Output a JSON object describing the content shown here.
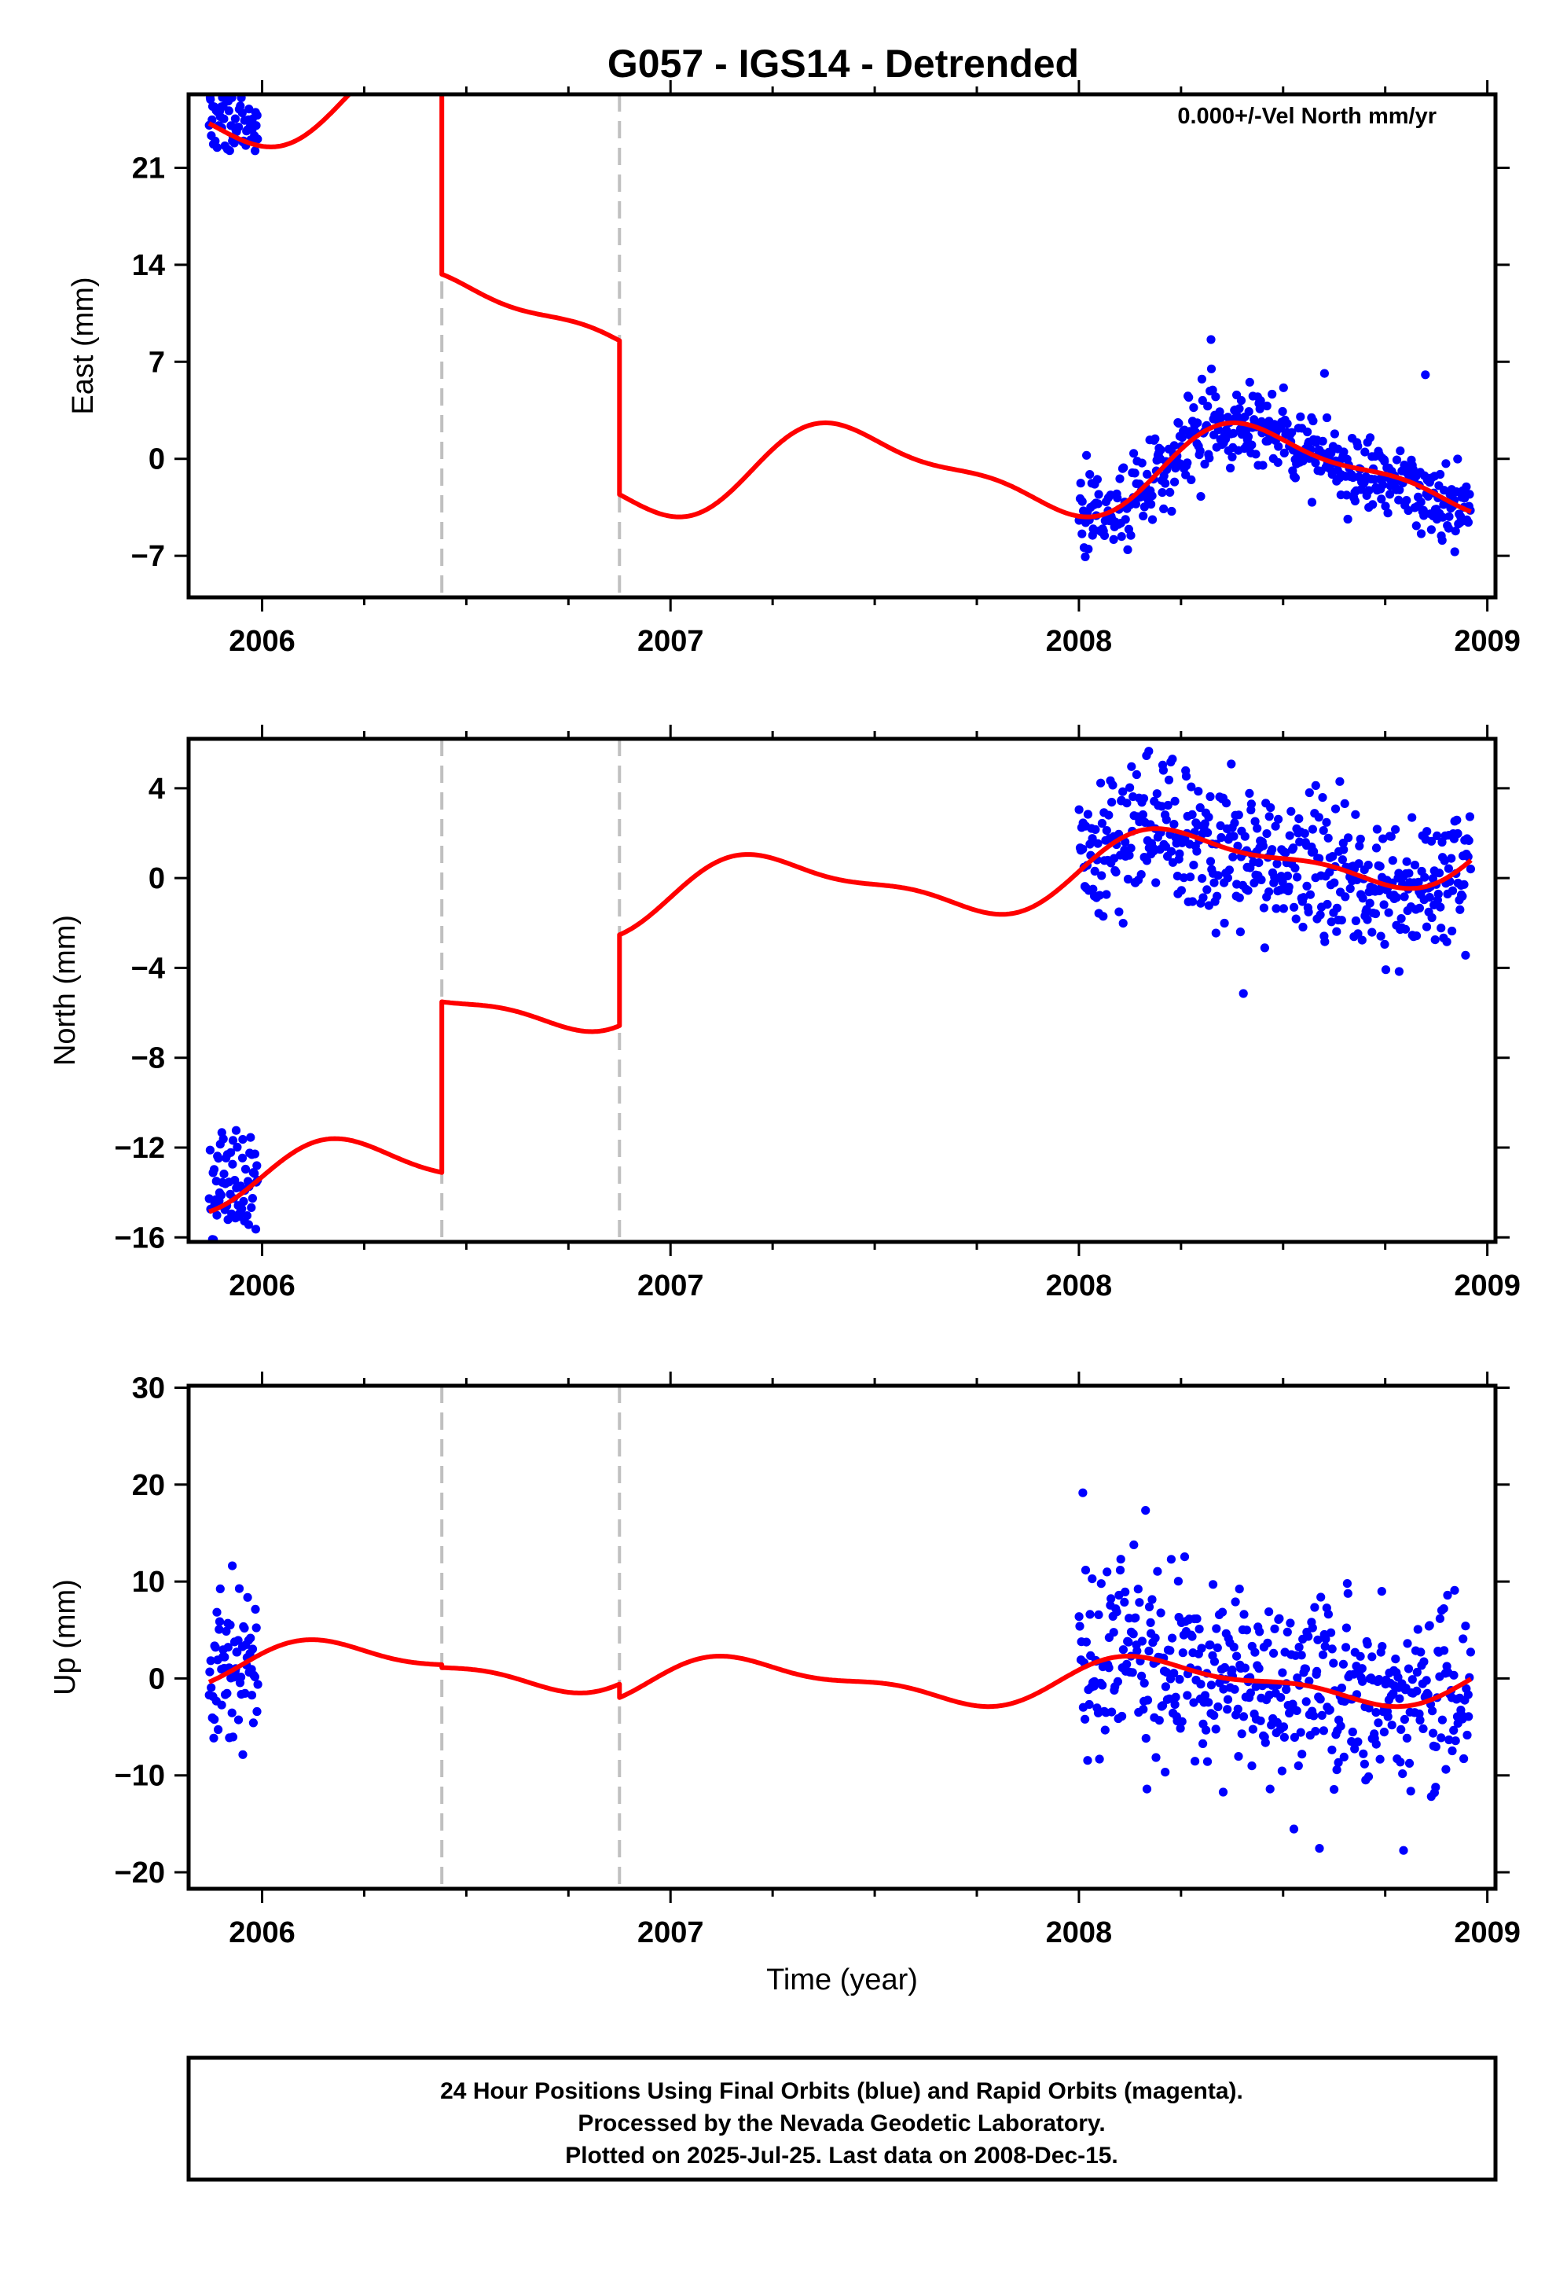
{
  "title": "G057 - IGS14 - Detrended",
  "colors": {
    "data": "#0000ff",
    "model": "#ff0000",
    "break": "#c0c0c0",
    "frame": "#000000"
  },
  "chart_data": [
    {
      "type": "scatter",
      "ylabel": "East (mm)",
      "xlabel": "",
      "annotation": "0.000+/-Vel North mm/yr",
      "xlim": [
        2005.82,
        2009.02
      ],
      "ylim": [
        -10,
        26.3
      ],
      "xticks": [
        2006,
        2007,
        2008,
        2009
      ],
      "yticks": [
        -7,
        0,
        7,
        14,
        21
      ],
      "breaks": [
        2006.44,
        2006.875
      ],
      "series": [
        {
          "role": "data",
          "segments": [
            {
              "x0": 2005.87,
              "x1": 2005.99,
              "n": 70,
              "model_offset": 1.2,
              "noise": 1.4,
              "seed": 11
            },
            {
              "x0": 2008.0,
              "x1": 2008.96,
              "n": 480,
              "model_offset": 0.0,
              "noise": 1.5,
              "seed": 29
            }
          ]
        },
        {
          "role": "model",
          "pieces": [
            {
              "x0": 2005.87,
              "x1": 2006.44,
              "base": 25.9,
              "trend": 0
            },
            {
              "x0": 2006.44,
              "x1": 2006.875,
              "base": 10.3,
              "trend": 0
            },
            {
              "x0": 2006.875,
              "x1": 2008.96,
              "base": -0.8,
              "trend": 0
            }
          ],
          "ann_amp": 2.9,
          "ann_phase": 2007.2,
          "semi_amp": 1.0,
          "semi_phase": 2007.2
        }
      ]
    },
    {
      "type": "scatter",
      "ylabel": "North (mm)",
      "xlabel": "",
      "xlim": [
        2005.82,
        2009.02
      ],
      "ylim": [
        -16.2,
        6.2
      ],
      "xticks": [
        2006,
        2007,
        2008,
        2009
      ],
      "yticks": [
        -16,
        -12,
        -8,
        -4,
        0,
        4
      ],
      "breaks": [
        2006.44,
        2006.875
      ],
      "series": [
        {
          "role": "data",
          "segments": [
            {
              "x0": 2005.87,
              "x1": 2005.99,
              "n": 70,
              "model_offset": 0.5,
              "noise": 1.4,
              "seed": 41
            },
            {
              "x0": 2008.0,
              "x1": 2008.96,
              "n": 480,
              "model_offset": 0.0,
              "noise": 1.6,
              "seed": 53
            }
          ]
        },
        {
          "role": "model",
          "pieces": [
            {
              "x0": 2005.87,
              "x1": 2006.44,
              "base": -13.3,
              "trend": 0
            },
            {
              "x0": 2006.44,
              "x1": 2006.875,
              "base": -5.7,
              "trend": 1.5
            },
            {
              "x0": 2006.875,
              "x1": 2008.96,
              "base": -1.0,
              "trend": 1.15
            }
          ],
          "ann_amp": 1.45,
          "ann_phase": 2007.0,
          "semi_amp": 0.5,
          "semi_phase": 2007.0
        }
      ]
    },
    {
      "type": "scatter",
      "ylabel": "Up (mm)",
      "xlabel": "Time (year)",
      "xlim": [
        2005.82,
        2009.02
      ],
      "ylim": [
        -21.7,
        30.2
      ],
      "xticks": [
        2006,
        2007,
        2008,
        2009
      ],
      "yticks": [
        -20,
        -10,
        0,
        10,
        20,
        30
      ],
      "breaks": [
        2006.44,
        2006.875
      ],
      "series": [
        {
          "role": "data",
          "segments": [
            {
              "x0": 2005.87,
              "x1": 2005.99,
              "n": 70,
              "model_offset": 0.5,
              "noise": 3.8,
              "seed": 67
            },
            {
              "x0": 2008.0,
              "x1": 2008.96,
              "n": 480,
              "model_offset": 0.3,
              "noise": 4.8,
              "seed": 79
            }
          ]
        },
        {
          "role": "model",
          "pieces": [
            {
              "x0": 2005.87,
              "x1": 2006.44,
              "base": 1.4,
              "trend": 0
            },
            {
              "x0": 2006.44,
              "x1": 2006.875,
              "base": 1.1,
              "trend": 0
            },
            {
              "x0": 2006.875,
              "x1": 2008.96,
              "base": -0.3,
              "trend": 0
            }
          ],
          "ann_amp": 2.1,
          "ann_phase": 2006.95,
          "semi_amp": 0.9,
          "semi_phase": 2006.95
        }
      ]
    }
  ],
  "footer": {
    "line1": "24 Hour Positions Using Final Orbits (blue) and Rapid Orbits (magenta).",
    "line2": "Processed by the Nevada Geodetic Laboratory.",
    "line3": "Plotted on 2025-Jul-25. Last data on 2008-Dec-15."
  }
}
